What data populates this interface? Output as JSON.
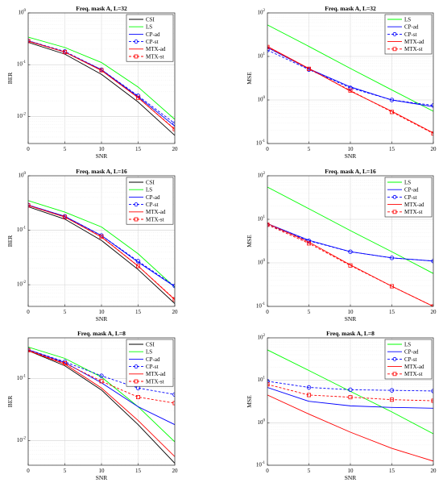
{
  "chart_data": [
    {
      "type": "line",
      "title": "Freq. mask A, L=32",
      "xlabel": "SNR",
      "ylabel": "BER",
      "yscale": "log",
      "xlim": [
        0,
        20
      ],
      "ylim": [
        0.003,
        1
      ],
      "x": [
        0,
        5,
        10,
        15,
        20
      ],
      "x_ticks": [
        "0",
        "5",
        "10",
        "15",
        "20"
      ],
      "y_ticks": [
        {
          "v": 1,
          "e": "0"
        },
        {
          "v": 0.1,
          "e": "-1"
        },
        {
          "v": 0.01,
          "e": "-2"
        }
      ],
      "grid": true,
      "legend": "top-right",
      "series": [
        {
          "name": "CSI",
          "color": "#000000",
          "dash": "",
          "marker": "none",
          "values": [
            0.27,
            0.16,
            0.065,
            0.019,
            0.0043
          ]
        },
        {
          "name": "LS",
          "color": "#00ff00",
          "dash": "",
          "marker": "none",
          "values": [
            0.34,
            0.215,
            0.11,
            0.037,
            0.0088
          ]
        },
        {
          "name": "CP-ad",
          "color": "#0000ff",
          "dash": "",
          "marker": "none",
          "values": [
            0.29,
            0.175,
            0.08,
            0.024,
            0.0065
          ]
        },
        {
          "name": "CP-st",
          "color": "#0000ff",
          "dash": "3,2",
          "marker": "circle",
          "values": [
            0.29,
            0.18,
            0.08,
            0.025,
            0.0073
          ]
        },
        {
          "name": "MTX-ad",
          "color": "#ff0000",
          "dash": "",
          "marker": "none",
          "values": [
            0.285,
            0.175,
            0.077,
            0.023,
            0.0056
          ]
        },
        {
          "name": "MTX-st",
          "color": "#ff0000",
          "dash": "3,2",
          "marker": "square",
          "values": [
            0.285,
            0.175,
            0.078,
            0.023,
            0.0057
          ]
        }
      ]
    },
    {
      "type": "line",
      "title": "Freq. mask A, L=32",
      "xlabel": "SNR",
      "ylabel": "MSE",
      "yscale": "log",
      "xlim": [
        0,
        20
      ],
      "ylim": [
        0.1,
        100
      ],
      "x": [
        0,
        5,
        10,
        15,
        20
      ],
      "x_ticks": [
        "0",
        "5",
        "10",
        "15",
        "20"
      ],
      "y_ticks": [
        {
          "v": 100,
          "e": "2"
        },
        {
          "v": 10,
          "e": "1"
        },
        {
          "v": 1,
          "e": "0"
        },
        {
          "v": 0.1,
          "e": "-1"
        }
      ],
      "grid": true,
      "legend": "top-right",
      "series": [
        {
          "name": "LS",
          "color": "#00ff00",
          "dash": "",
          "marker": "none",
          "values": [
            53,
            17,
            5.3,
            1.7,
            0.55
          ]
        },
        {
          "name": "CP-ad",
          "color": "#0000ff",
          "dash": "",
          "marker": "none",
          "values": [
            16,
            5.2,
            2.0,
            1.0,
            0.7
          ]
        },
        {
          "name": "CP-st",
          "color": "#0000ff",
          "dash": "3,2",
          "marker": "circle",
          "values": [
            14,
            5.0,
            1.9,
            1.0,
            0.75
          ]
        },
        {
          "name": "MTX-ad",
          "color": "#ff0000",
          "dash": "",
          "marker": "none",
          "values": [
            17,
            5.3,
            1.6,
            0.55,
            0.175
          ]
        },
        {
          "name": "MTX-st",
          "color": "#ff0000",
          "dash": "3,2",
          "marker": "square",
          "values": [
            16.5,
            5.2,
            1.65,
            0.53,
            0.17
          ]
        }
      ]
    },
    {
      "type": "line",
      "title": "Freq. mask A, L=16",
      "xlabel": "SNR",
      "ylabel": "BER",
      "yscale": "log",
      "xlim": [
        0,
        20
      ],
      "ylim": [
        0.004,
        1
      ],
      "x": [
        0,
        5,
        10,
        15,
        20
      ],
      "x_ticks": [
        "0",
        "5",
        "10",
        "15",
        "20"
      ],
      "y_ticks": [
        {
          "v": 1,
          "e": "0"
        },
        {
          "v": 0.1,
          "e": "-1"
        },
        {
          "v": 0.01,
          "e": "-2"
        }
      ],
      "grid": true,
      "legend": "top-right",
      "series": [
        {
          "name": "CSI",
          "color": "#000000",
          "dash": "",
          "marker": "none",
          "values": [
            0.27,
            0.16,
            0.065,
            0.019,
            0.0045
          ]
        },
        {
          "name": "LS",
          "color": "#00ff00",
          "dash": "",
          "marker": "none",
          "values": [
            0.35,
            0.215,
            0.115,
            0.037,
            0.009
          ]
        },
        {
          "name": "CP-ad",
          "color": "#0000ff",
          "dash": "",
          "marker": "none",
          "values": [
            0.29,
            0.18,
            0.08,
            0.026,
            0.0092
          ]
        },
        {
          "name": "CP-st",
          "color": "#0000ff",
          "dash": "3,2",
          "marker": "circle",
          "values": [
            0.29,
            0.18,
            0.08,
            0.027,
            0.0095
          ]
        },
        {
          "name": "MTX-ad",
          "color": "#ff0000",
          "dash": "",
          "marker": "none",
          "values": [
            0.285,
            0.175,
            0.075,
            0.022,
            0.0053
          ]
        },
        {
          "name": "MTX-st",
          "color": "#ff0000",
          "dash": "3,2",
          "marker": "square",
          "values": [
            0.285,
            0.175,
            0.076,
            0.022,
            0.0054
          ]
        }
      ]
    },
    {
      "type": "line",
      "title": "Freq. mask A, L=16",
      "xlabel": "SNR",
      "ylabel": "MSE",
      "yscale": "log",
      "xlim": [
        0,
        20
      ],
      "ylim": [
        0.1,
        100
      ],
      "x": [
        0,
        5,
        10,
        15,
        20
      ],
      "x_ticks": [
        "0",
        "5",
        "10",
        "15",
        "20"
      ],
      "y_ticks": [
        {
          "v": 100,
          "e": "2"
        },
        {
          "v": 10,
          "e": "1"
        },
        {
          "v": 1,
          "e": "0"
        },
        {
          "v": 0.1,
          "e": "-1"
        }
      ],
      "grid": true,
      "legend": "top-right",
      "series": [
        {
          "name": "LS",
          "color": "#00ff00",
          "dash": "",
          "marker": "none",
          "values": [
            55,
            17.5,
            5.5,
            1.8,
            0.57
          ]
        },
        {
          "name": "CP-ad",
          "color": "#0000ff",
          "dash": "",
          "marker": "none",
          "values": [
            8,
            3.3,
            1.8,
            1.3,
            1.1
          ]
        },
        {
          "name": "CP-st",
          "color": "#0000ff",
          "dash": "3,2",
          "marker": "circle",
          "values": [
            7.5,
            3.2,
            1.8,
            1.3,
            1.1
          ]
        },
        {
          "name": "MTX-ad",
          "color": "#ff0000",
          "dash": "",
          "marker": "none",
          "values": [
            8,
            3.0,
            0.9,
            0.29,
            0.1
          ]
        },
        {
          "name": "MTX-st",
          "color": "#ff0000",
          "dash": "3,2",
          "marker": "square",
          "values": [
            7.5,
            2.8,
            0.87,
            0.29,
            0.1
          ]
        }
      ]
    },
    {
      "type": "line",
      "title": "Freq. mask A, L=8",
      "xlabel": "SNR",
      "ylabel": "BER",
      "yscale": "log",
      "xlim": [
        0,
        20
      ],
      "ylim": [
        0.004,
        0.45
      ],
      "x": [
        0,
        5,
        10,
        15,
        20
      ],
      "x_ticks": [
        "0",
        "5",
        "10",
        "15",
        "20"
      ],
      "y_ticks": [
        {
          "v": 0.1,
          "e": "-1"
        },
        {
          "v": 0.01,
          "e": "-2"
        }
      ],
      "grid": true,
      "legend": "top-right",
      "series": [
        {
          "name": "CSI",
          "color": "#000000",
          "dash": "",
          "marker": "none",
          "values": [
            0.28,
            0.16,
            0.065,
            0.018,
            0.0043
          ]
        },
        {
          "name": "LS",
          "color": "#00ff00",
          "dash": "",
          "marker": "none",
          "values": [
            0.32,
            0.21,
            0.105,
            0.035,
            0.0095
          ]
        },
        {
          "name": "CP-ad",
          "color": "#0000ff",
          "dash": "",
          "marker": "none",
          "values": [
            0.29,
            0.18,
            0.085,
            0.035,
            0.018
          ]
        },
        {
          "name": "CP-st",
          "color": "#0000ff",
          "dash": "3,2",
          "marker": "circle",
          "values": [
            0.29,
            0.185,
            0.11,
            0.07,
            0.055
          ]
        },
        {
          "name": "MTX-ad",
          "color": "#ff0000",
          "dash": "",
          "marker": "none",
          "values": [
            0.28,
            0.17,
            0.07,
            0.021,
            0.0055
          ]
        },
        {
          "name": "MTX-st",
          "color": "#ff0000",
          "dash": "3,2",
          "marker": "square",
          "values": [
            0.285,
            0.175,
            0.09,
            0.05,
            0.04
          ]
        }
      ]
    },
    {
      "type": "line",
      "title": "Freq. mask A, L=8",
      "xlabel": "SNR",
      "ylabel": "MSE",
      "yscale": "log",
      "xlim": [
        0,
        20
      ],
      "ylim": [
        0.1,
        100
      ],
      "x": [
        0,
        5,
        10,
        15,
        20
      ],
      "x_ticks": [
        "0",
        "5",
        "10",
        "15",
        "20"
      ],
      "y_ticks": [
        {
          "v": 100,
          "e": "2"
        },
        {
          "v": 10,
          "e": "1"
        },
        {
          "v": 1,
          "e": "0"
        },
        {
          "v": 0.1,
          "e": "-1"
        }
      ],
      "grid": true,
      "legend": "top-right",
      "series": [
        {
          "name": "LS",
          "color": "#00ff00",
          "dash": "",
          "marker": "none",
          "values": [
            52,
            17,
            5.5,
            1.8,
            0.55
          ]
        },
        {
          "name": "CP-ad",
          "color": "#0000ff",
          "dash": "",
          "marker": "none",
          "values": [
            6.8,
            3.2,
            2.5,
            2.3,
            2.2
          ]
        },
        {
          "name": "CP-st",
          "color": "#0000ff",
          "dash": "3,2",
          "marker": "circle",
          "values": [
            9.5,
            6.8,
            6.0,
            5.8,
            5.6
          ]
        },
        {
          "name": "MTX-ad",
          "color": "#ff0000",
          "dash": "",
          "marker": "none",
          "values": [
            4.5,
            1.6,
            0.6,
            0.25,
            0.125
          ]
        },
        {
          "name": "MTX-st",
          "color": "#ff0000",
          "dash": "3,2",
          "marker": "square",
          "values": [
            8,
            4.5,
            4.0,
            3.5,
            3.3
          ]
        }
      ]
    }
  ]
}
